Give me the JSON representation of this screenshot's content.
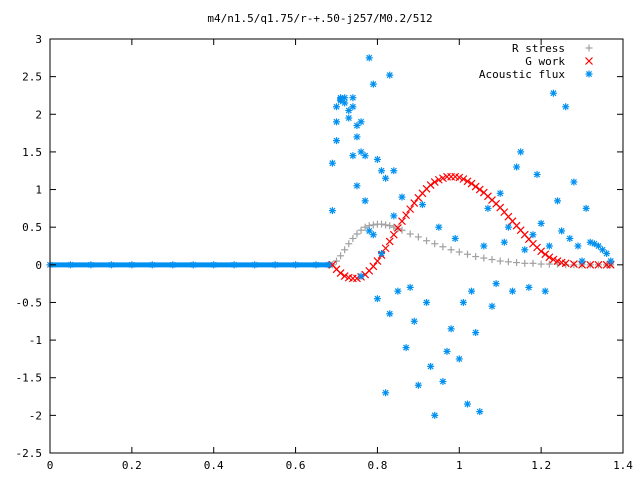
{
  "chart_data": {
    "type": "scatter",
    "title": "m4/n1.5/q1.75/r-+.50-j257/M0.2/512",
    "xlabel": "",
    "ylabel": "",
    "xlim": [
      0,
      1.4
    ],
    "ylim": [
      -2.5,
      3
    ],
    "grid": false,
    "legend_position": "top-right",
    "x_ticks": [
      "0",
      "0.2",
      "0.4",
      "0.6",
      "0.8",
      "1",
      "1.2",
      "1.4"
    ],
    "y_ticks": [
      "3",
      "2.5",
      "2",
      "1.5",
      "1",
      "0.5",
      "0",
      "-0.5",
      "-1",
      "-1.5",
      "-2",
      "-2.5"
    ],
    "series": [
      {
        "name": "R stress",
        "marker": "plus",
        "color": "#a0a0a0",
        "x": [
          0.69,
          0.7,
          0.71,
          0.72,
          0.73,
          0.74,
          0.75,
          0.76,
          0.77,
          0.78,
          0.79,
          0.8,
          0.81,
          0.82,
          0.83,
          0.84,
          0.85,
          0.86,
          0.88,
          0.9,
          0.92,
          0.94,
          0.96,
          0.98,
          1.0,
          1.02,
          1.04,
          1.06,
          1.08,
          1.1,
          1.12,
          1.14,
          1.16,
          1.18,
          1.2,
          1.22,
          1.24,
          1.26,
          1.28,
          1.3,
          1.32,
          1.34,
          1.36,
          1.37
        ],
        "y": [
          0.0,
          0.05,
          0.12,
          0.2,
          0.28,
          0.35,
          0.41,
          0.46,
          0.5,
          0.52,
          0.53,
          0.54,
          0.54,
          0.53,
          0.52,
          0.5,
          0.48,
          0.46,
          0.41,
          0.37,
          0.32,
          0.28,
          0.24,
          0.2,
          0.17,
          0.14,
          0.11,
          0.09,
          0.07,
          0.05,
          0.04,
          0.03,
          0.02,
          0.02,
          0.01,
          0.01,
          0.01,
          0.0,
          0.0,
          0.0,
          0.0,
          0.0,
          0.0,
          0.0
        ]
      },
      {
        "name": "G work",
        "marker": "cross",
        "color": "#ff0000",
        "x": [
          0.69,
          0.7,
          0.71,
          0.72,
          0.73,
          0.74,
          0.75,
          0.76,
          0.77,
          0.78,
          0.79,
          0.8,
          0.81,
          0.82,
          0.83,
          0.84,
          0.85,
          0.86,
          0.87,
          0.88,
          0.89,
          0.9,
          0.91,
          0.92,
          0.93,
          0.94,
          0.95,
          0.96,
          0.97,
          0.98,
          0.99,
          1.0,
          1.01,
          1.02,
          1.03,
          1.04,
          1.05,
          1.06,
          1.07,
          1.08,
          1.09,
          1.1,
          1.11,
          1.12,
          1.13,
          1.14,
          1.15,
          1.16,
          1.17,
          1.18,
          1.19,
          1.2,
          1.21,
          1.22,
          1.23,
          1.24,
          1.25,
          1.26,
          1.28,
          1.3,
          1.32,
          1.34,
          1.36,
          1.37
        ],
        "y": [
          0.0,
          -0.06,
          -0.11,
          -0.15,
          -0.17,
          -0.18,
          -0.18,
          -0.16,
          -0.13,
          -0.08,
          -0.02,
          0.05,
          0.13,
          0.22,
          0.31,
          0.4,
          0.49,
          0.58,
          0.66,
          0.74,
          0.82,
          0.89,
          0.95,
          1.01,
          1.06,
          1.1,
          1.13,
          1.15,
          1.17,
          1.17,
          1.17,
          1.16,
          1.14,
          1.11,
          1.08,
          1.04,
          1.0,
          0.96,
          0.91,
          0.86,
          0.81,
          0.76,
          0.7,
          0.64,
          0.58,
          0.52,
          0.46,
          0.4,
          0.34,
          0.28,
          0.23,
          0.18,
          0.14,
          0.1,
          0.07,
          0.05,
          0.03,
          0.02,
          0.01,
          0.0,
          0.0,
          0.0,
          0.0,
          0.0
        ]
      },
      {
        "name": "Acoustic flux",
        "marker": "star",
        "color": "#0090f0",
        "x": [
          0.0,
          0.05,
          0.1,
          0.15,
          0.2,
          0.25,
          0.3,
          0.35,
          0.4,
          0.45,
          0.5,
          0.55,
          0.6,
          0.65,
          0.68,
          0.69,
          0.69,
          0.7,
          0.7,
          0.7,
          0.71,
          0.71,
          0.71,
          0.72,
          0.72,
          0.73,
          0.73,
          0.74,
          0.74,
          0.74,
          0.75,
          0.75,
          0.75,
          0.76,
          0.76,
          0.76,
          0.77,
          0.77,
          0.78,
          0.78,
          0.79,
          0.79,
          0.8,
          0.8,
          0.81,
          0.81,
          0.82,
          0.82,
          0.83,
          0.83,
          0.84,
          0.84,
          0.85,
          0.86,
          0.87,
          0.88,
          0.89,
          0.9,
          0.91,
          0.92,
          0.93,
          0.94,
          0.95,
          0.96,
          0.97,
          0.98,
          0.99,
          1.0,
          1.01,
          1.02,
          1.03,
          1.04,
          1.05,
          1.06,
          1.07,
          1.08,
          1.09,
          1.1,
          1.11,
          1.12,
          1.13,
          1.14,
          1.15,
          1.16,
          1.17,
          1.18,
          1.19,
          1.2,
          1.21,
          1.22,
          1.23,
          1.24,
          1.25,
          1.26,
          1.27,
          1.28,
          1.29,
          1.3,
          1.31,
          1.32,
          1.33,
          1.34,
          1.35,
          1.36,
          1.37
        ],
        "y": [
          0.0,
          0.0,
          0.0,
          0.0,
          0.0,
          0.0,
          0.0,
          0.0,
          0.0,
          0.0,
          0.0,
          0.0,
          0.0,
          0.0,
          0.0,
          0.72,
          1.35,
          1.65,
          1.9,
          2.1,
          2.18,
          2.22,
          2.2,
          2.22,
          2.15,
          2.05,
          1.95,
          2.22,
          2.1,
          1.45,
          1.85,
          1.7,
          1.05,
          1.9,
          1.5,
          -0.15,
          1.45,
          0.85,
          2.75,
          0.45,
          2.4,
          0.4,
          1.4,
          -0.45,
          1.25,
          0.15,
          1.15,
          -1.7,
          2.52,
          -0.65,
          1.25,
          0.65,
          -0.35,
          0.9,
          -1.1,
          -0.3,
          -0.75,
          -1.6,
          0.8,
          -0.5,
          -1.35,
          -2.0,
          0.5,
          -1.55,
          -1.15,
          -0.85,
          0.35,
          -1.25,
          -0.5,
          -1.85,
          -0.35,
          -0.9,
          -1.95,
          0.25,
          0.75,
          -0.55,
          -0.25,
          0.95,
          0.3,
          0.5,
          -0.35,
          1.3,
          1.5,
          0.2,
          -0.3,
          0.4,
          1.2,
          0.55,
          -0.35,
          0.25,
          2.28,
          0.85,
          0.45,
          2.1,
          0.35,
          1.1,
          0.25,
          0.05,
          0.75,
          0.3,
          0.28,
          0.25,
          0.2,
          0.15,
          0.05
        ]
      }
    ]
  }
}
